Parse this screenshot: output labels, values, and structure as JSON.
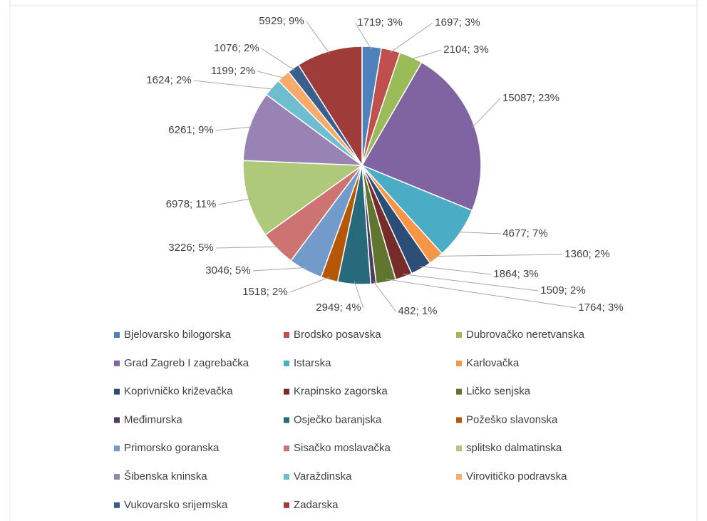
{
  "chart_data": {
    "type": "pie",
    "categories": [
      "Bjelovarsko bilogorska",
      "Brodsko posavska",
      "Dubrovačko neretvanska",
      "Grad Zagreb I zagrebačka",
      "Istarska",
      "Karlovačka",
      "Koprivničko križevačka",
      "Krapinsko zagorska",
      "Ličko senjska",
      "Međimurska",
      "Osječko baranjska",
      "Požeško slavonska",
      "Primorsko goranska",
      "Sisačko moslavačka",
      "splitsko dalmatinska",
      "Šibenska kninska",
      "Varaždinska",
      "Virovitičko podravska",
      "Vukovarsko srijemska",
      "Zadarska"
    ],
    "values": [
      1719,
      1697,
      2104,
      15087,
      4677,
      1360,
      1864,
      1509,
      1764,
      482,
      2949,
      1518,
      3046,
      3226,
      6978,
      6261,
      1624,
      1199,
      1076,
      5929
    ],
    "value_labels": [
      "1719; 3%",
      "1697; 3%",
      "2104; 3%",
      "15087; 23%",
      "4677; 7%",
      "1360; 2%",
      "1864; 3%",
      "1509; 2%",
      "1764; 3%",
      "482; 1%",
      "2949; 4%",
      "1518; 2%",
      "3046; 5%",
      "3226; 5%",
      "6978; 11%",
      "6261; 9%",
      "1624; 2%",
      "1199; 2%",
      "1076; 2%",
      "5929; 9%"
    ],
    "colors": [
      "#4f81bd",
      "#c0504d",
      "#9bbb59",
      "#8064a2",
      "#4bacc6",
      "#f79646",
      "#2c4d75",
      "#772c2a",
      "#5f7530",
      "#4d3b62",
      "#276a7c",
      "#b65708",
      "#729aca",
      "#cd7371",
      "#afc97a",
      "#9983b5",
      "#6fbdd1",
      "#f9ab6b",
      "#3a5f8c",
      "#9f3b38"
    ],
    "legend": "bottom"
  }
}
